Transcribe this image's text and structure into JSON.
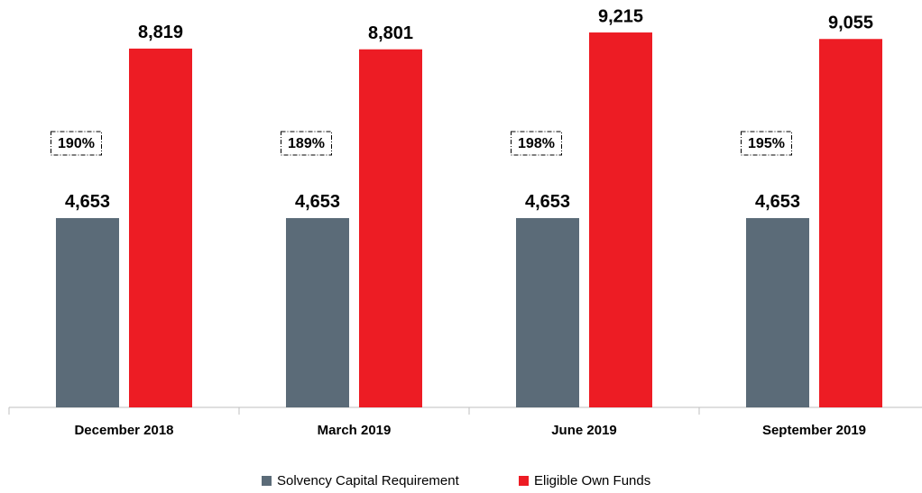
{
  "chart_data": {
    "type": "bar",
    "categories": [
      "December 2018",
      "March 2019",
      "June 2019",
      "September 2019"
    ],
    "series": [
      {
        "name": "Solvency Capital Requirement",
        "color": "#5b6b78",
        "values": [
          4653,
          4653,
          4653,
          4653
        ],
        "value_labels": [
          "4,653",
          "4,653",
          "4,653",
          "4,653"
        ]
      },
      {
        "name": "Eligible Own Funds",
        "color": "#ed1c24",
        "values": [
          8819,
          8801,
          9215,
          9055
        ],
        "value_labels": [
          "8,819",
          "8,801",
          "9,215",
          "9,055"
        ]
      }
    ],
    "annotations": [
      "190%",
      "189%",
      "198%",
      "195%"
    ],
    "ylim": [
      0,
      10000
    ],
    "legend": "bottom"
  }
}
